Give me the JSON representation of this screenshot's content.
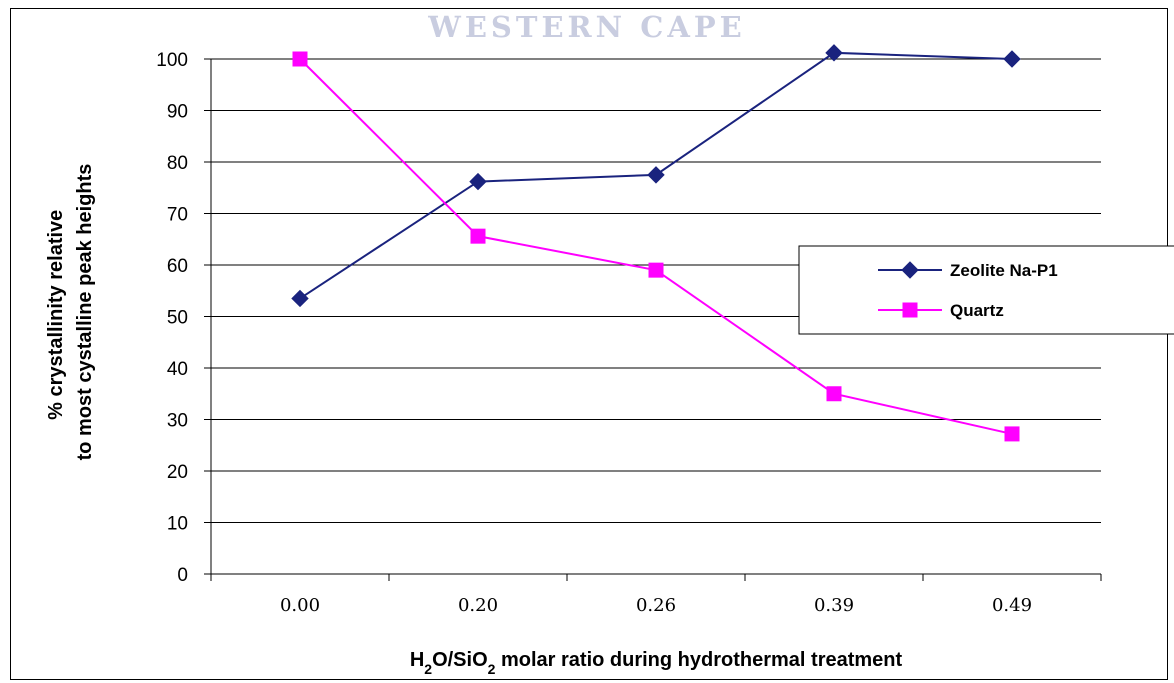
{
  "watermark": "WESTERN CAPE",
  "colors": {
    "zeolite": "#1a237e",
    "quartz": "#ff00ff",
    "grid": "#000000"
  },
  "chart_data": {
    "type": "line",
    "categories": [
      "0.00",
      "0.20",
      "0.26",
      "0.39",
      "0.49"
    ],
    "series": [
      {
        "name": "Zeolite Na-P1",
        "values": [
          53.5,
          76.2,
          77.5,
          101.2,
          100
        ],
        "marker": "diamond"
      },
      {
        "name": "Quartz",
        "values": [
          100,
          65.6,
          59,
          35,
          27.2
        ],
        "marker": "square"
      }
    ],
    "yticks": [
      0,
      10,
      20,
      30,
      40,
      50,
      60,
      70,
      80,
      90,
      100
    ],
    "ylim": [
      0,
      100
    ],
    "grid": "horizontal",
    "legend_position": "right",
    "ylabel_lines": [
      "% crystallinity relative",
      "to most cystalline peak heights"
    ],
    "xlabel_parts": [
      {
        "text": "H",
        "sub": false
      },
      {
        "text": "2",
        "sub": true
      },
      {
        "text": "O/SiO",
        "sub": false
      },
      {
        "text": "2",
        "sub": true
      },
      {
        "text": " molar ratio during hydrothermal treatment",
        "sub": false
      }
    ]
  }
}
